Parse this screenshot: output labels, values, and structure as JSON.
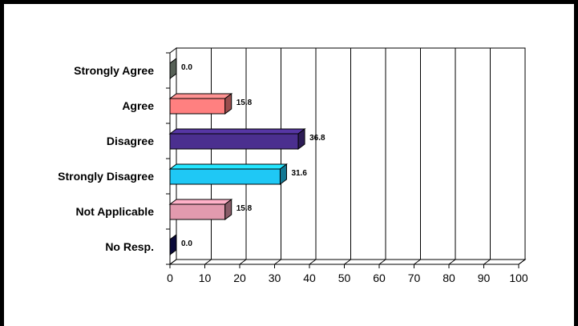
{
  "chart_data": {
    "type": "bar",
    "orientation": "horizontal",
    "style": "3d",
    "categories": [
      "Strongly Agree",
      "Agree",
      "Disagree",
      "Strongly Disagree",
      "Not Applicable",
      "No Resp."
    ],
    "values": [
      0.0,
      15.8,
      36.8,
      31.6,
      15.8,
      0.0
    ],
    "value_labels": [
      "0.0",
      "15.8",
      "36.8",
      "31.6",
      "15.8",
      "0.0"
    ],
    "colors": [
      "#8fa08f",
      "#ff8080",
      "#4b2f8f",
      "#1fc8f5",
      "#e29aae",
      "#101060"
    ],
    "xlim": [
      0,
      100
    ],
    "x_ticks": [
      "0",
      "10",
      "20",
      "30",
      "40",
      "50",
      "60",
      "70",
      "80",
      "90",
      "100"
    ],
    "grid": true,
    "legend": "none",
    "title": "",
    "xlabel": "",
    "ylabel": ""
  }
}
